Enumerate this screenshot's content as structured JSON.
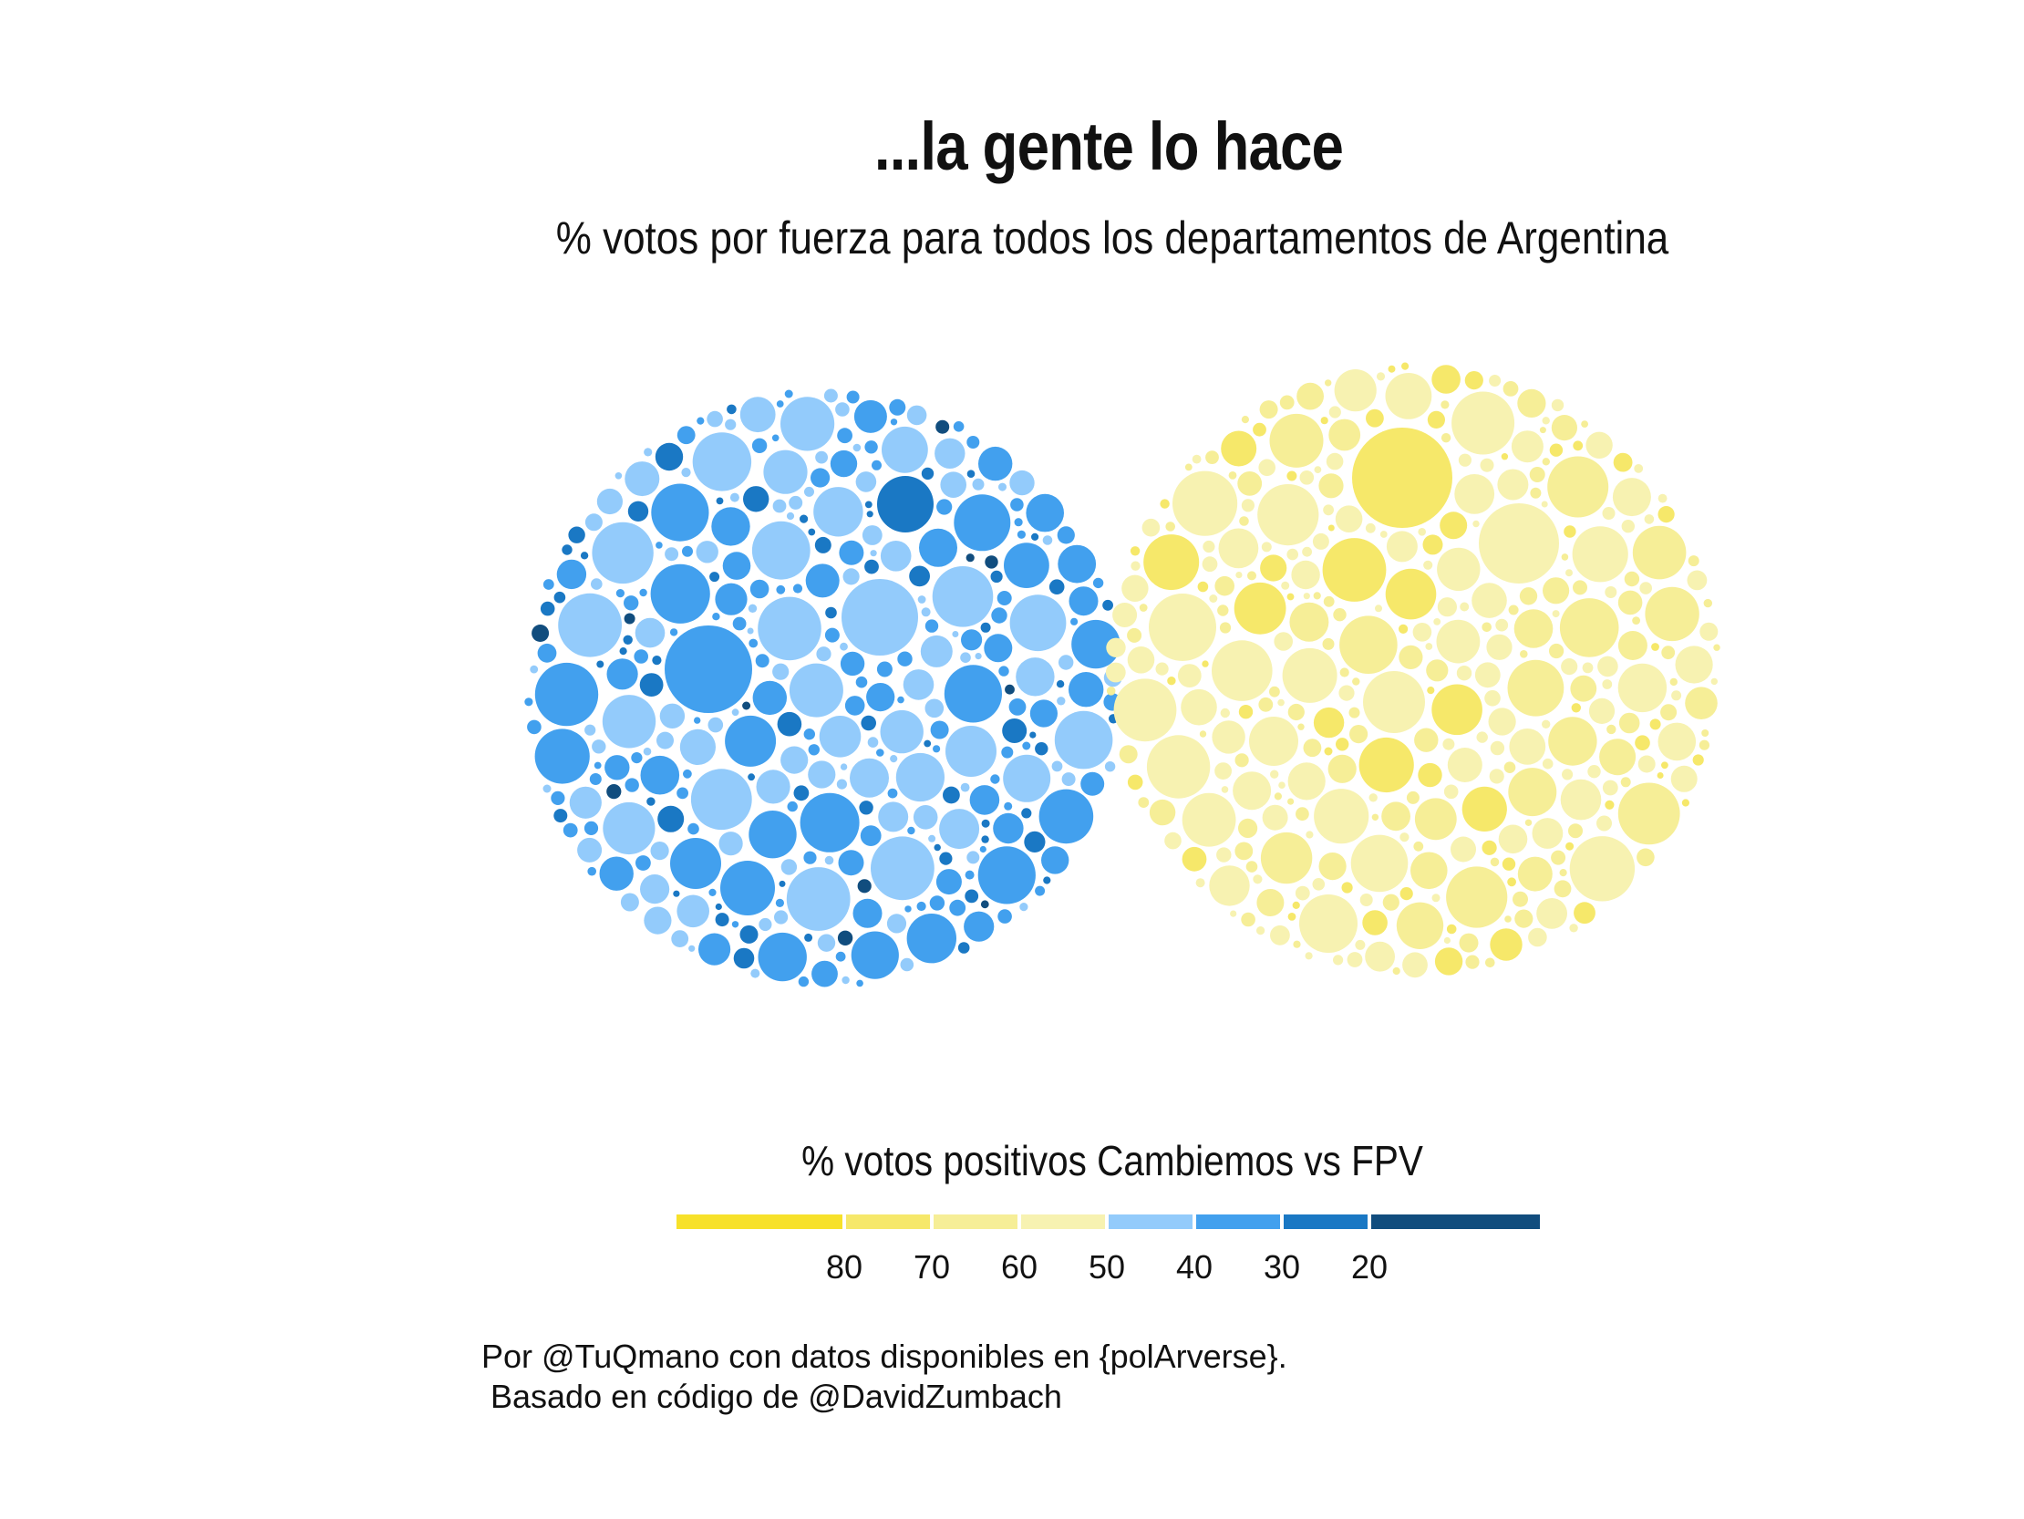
{
  "title": "...la gente lo hace",
  "subtitle": "% votos por fuerza para todos los departamentos de Argentina",
  "caption_lines": [
    "Por @TuQmano con datos disponibles en {polArverse}.",
    " Basado en código de @DavidZumbach"
  ],
  "chart_data": {
    "type": "bubble-pack",
    "groups": [
      {
        "side": "left",
        "fill_range_pct": [
          10,
          48
        ],
        "largest_bubbles": [
          {
            "pct": 35
          },
          {
            "pct": 45
          },
          {
            "pct": 25
          },
          {
            "pct": 45
          },
          {
            "pct": 35
          },
          {
            "pct": 35
          }
        ]
      },
      {
        "side": "right",
        "fill_range_pct": [
          52,
          78
        ],
        "largest_bubbles": [
          {
            "pct": 72
          },
          {
            "pct": 56
          },
          {
            "pct": 55
          },
          {
            "pct": 56
          },
          {
            "pct": 55
          },
          {
            "pct": 55
          }
        ]
      }
    ],
    "legend": {
      "title": "% votos positivos Cambiemos vs FPV",
      "bins": [
        {
          "color": "#f7e12a"
        },
        {
          "color": "#f6e86a"
        },
        {
          "color": "#f6ee97"
        },
        {
          "color": "#f7f2b1"
        },
        {
          "color": "#93cbfb"
        },
        {
          "color": "#42a0ee"
        },
        {
          "color": "#1a78c4"
        },
        {
          "color": "#114d7e"
        }
      ],
      "ticks": [
        "80",
        "70",
        "60",
        "50",
        "40",
        "30",
        "20"
      ]
    }
  }
}
